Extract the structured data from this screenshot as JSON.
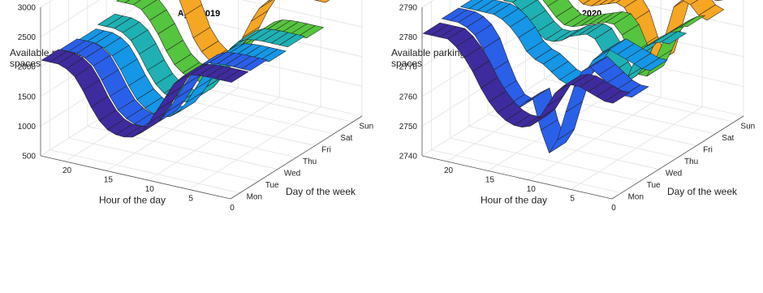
{
  "chart_data": [
    {
      "type": "ribbon3d",
      "title": "April 2019",
      "zlabel": "Available parking spaces",
      "xlabel": "Hour of the day",
      "ylabel": "Day of the week",
      "zlim": [
        500,
        3000
      ],
      "zticks": [
        500,
        1000,
        1500,
        2000,
        2500,
        3000
      ],
      "xlim": [
        0,
        23
      ],
      "xticks": [
        0,
        5,
        10,
        15,
        20
      ],
      "ycategories": [
        "Mon",
        "Tue",
        "Wed",
        "Thu",
        "Fri",
        "Sat",
        "Sun"
      ],
      "grid": true,
      "hours": [
        0,
        1,
        2,
        3,
        4,
        5,
        6,
        7,
        8,
        9,
        10,
        11,
        12,
        13,
        14,
        15,
        16,
        17,
        18,
        19,
        20,
        21,
        22,
        23
      ],
      "series": [
        {
          "color": "#3e2b9e",
          "values": [
            2450,
            2450,
            2450,
            2450,
            2440,
            2420,
            2350,
            2200,
            1950,
            1700,
            1450,
            1250,
            1150,
            1120,
            1130,
            1180,
            1300,
            1500,
            1750,
            1950,
            2050,
            2100,
            2100,
            2100
          ]
        },
        {
          "color": "#2a5fe8",
          "values": [
            2450,
            2450,
            2450,
            2450,
            2440,
            2420,
            2350,
            2200,
            1950,
            1700,
            1450,
            1250,
            1150,
            1100,
            1110,
            1170,
            1280,
            1480,
            1720,
            1930,
            2030,
            2080,
            2080,
            2080
          ]
        },
        {
          "color": "#1696e6",
          "values": [
            2400,
            2400,
            2400,
            2400,
            2390,
            2370,
            2300,
            2150,
            1900,
            1650,
            1400,
            1200,
            1100,
            1060,
            1080,
            1150,
            1260,
            1460,
            1700,
            1900,
            2000,
            2050,
            2050,
            2050
          ]
        },
        {
          "color": "#1fb0b3",
          "values": [
            2450,
            2450,
            2450,
            2450,
            2440,
            2420,
            2350,
            2200,
            1950,
            1700,
            1450,
            1250,
            1150,
            1120,
            1140,
            1200,
            1320,
            1520,
            1760,
            1960,
            2060,
            2100,
            2100,
            2100
          ]
        },
        {
          "color": "#55c43e",
          "values": [
            2400,
            2400,
            2400,
            2400,
            2390,
            2370,
            2300,
            2180,
            2000,
            1800,
            1600,
            1420,
            1300,
            1260,
            1280,
            1340,
            1450,
            1650,
            1900,
            2100,
            2250,
            2300,
            2300,
            2300
          ]
        },
        {
          "color": "#f5a623",
          "values": [
            2800,
            2800,
            2800,
            2790,
            2780,
            2760,
            2700,
            2600,
            2450,
            2200,
            1900,
            1600,
            1400,
            1350,
            1380,
            1500,
            1700,
            2050,
            2400,
            2650,
            2760,
            2800,
            2800,
            2800
          ]
        },
        {
          "color": "#f0ea28",
          "values": [
            2900,
            2900,
            2900,
            2900,
            2900,
            2900,
            2900,
            2900,
            2900,
            2900,
            2900,
            2900,
            2900,
            2900,
            2900,
            2900,
            2900,
            2900,
            2900,
            2900,
            2900,
            2900,
            2900,
            2900
          ]
        }
      ]
    },
    {
      "type": "ribbon3d",
      "title": "April 2020",
      "zlabel": "Available parking spaces",
      "xlabel": "Hour of the day",
      "ylabel": "Day of the week",
      "zlim": [
        2740,
        2790
      ],
      "zticks": [
        2740,
        2750,
        2760,
        2770,
        2780,
        2790
      ],
      "xlim": [
        0,
        23
      ],
      "xticks": [
        0,
        5,
        10,
        15,
        20
      ],
      "ycategories": [
        "Mon",
        "Tue",
        "Wed",
        "Thu",
        "Fri",
        "Sat",
        "Sun"
      ],
      "grid": true,
      "hours": [
        0,
        1,
        2,
        3,
        4,
        5,
        6,
        7,
        8,
        9,
        10,
        11,
        12,
        13,
        14,
        15,
        16,
        17,
        18,
        19,
        20,
        21,
        22,
        23
      ],
      "series": [
        {
          "color": "#3e2b9e",
          "values": [
            2772,
            2772,
            2773,
            2774,
            2775,
            2775,
            2774,
            2771,
            2766,
            2761,
            2758,
            2757,
            2757,
            2758,
            2760,
            2763,
            2767,
            2772,
            2776,
            2779,
            2781,
            2781,
            2781,
            2781
          ]
        },
        {
          "color": "#2a5fe8",
          "values": [
            2770,
            2770,
            2771,
            2773,
            2775,
            2777,
            2775,
            2769,
            2760,
            2750,
            2745,
            2752,
            2762,
            2760,
            2757,
            2758,
            2762,
            2768,
            2775,
            2779,
            2781,
            2782,
            2782,
            2782
          ]
        },
        {
          "color": "#1696e6",
          "values": [
            2775,
            2775,
            2776,
            2777,
            2778,
            2779,
            2777,
            2774,
            2769,
            2765,
            2764,
            2765,
            2767,
            2769,
            2770,
            2772,
            2776,
            2779,
            2781,
            2782,
            2782,
            2782,
            2782,
            2782
          ]
        },
        {
          "color": "#1fb0b3",
          "values": [
            2780,
            2780,
            2779,
            2777,
            2773,
            2766,
            2762,
            2766,
            2772,
            2776,
            2777,
            2776,
            2775,
            2773,
            2772,
            2772,
            2774,
            2777,
            2780,
            2782,
            2782,
            2783,
            2783,
            2783
          ]
        },
        {
          "color": "#55c43e",
          "values": [
            2782,
            2781,
            2779,
            2775,
            2768,
            2762,
            2762,
            2768,
            2774,
            2777,
            2777,
            2776,
            2775,
            2774,
            2773,
            2773,
            2775,
            2778,
            2781,
            2783,
            2784,
            2784,
            2784,
            2784
          ]
        },
        {
          "color": "#f5a623",
          "values": [
            2780,
            2781,
            2784,
            2785,
            2782,
            2772,
            2762,
            2760,
            2766,
            2774,
            2778,
            2779,
            2778,
            2777,
            2776,
            2776,
            2778,
            2781,
            2784,
            2786,
            2787,
            2787,
            2787,
            2787
          ]
        },
        {
          "color": "#f0ea28",
          "values": [
            2783,
            2782,
            2782,
            2781,
            2780,
            2780,
            2780,
            2780,
            2779,
            2779,
            2779,
            2780,
            2780,
            2781,
            2781,
            2782,
            2783,
            2783,
            2784,
            2784,
            2784,
            2784,
            2784,
            2784
          ]
        }
      ]
    }
  ]
}
